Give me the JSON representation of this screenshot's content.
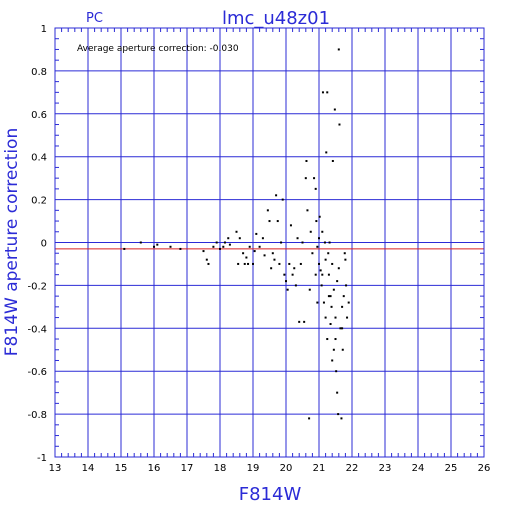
{
  "header": {
    "left_label": "PC",
    "title": "lmc_u48z01"
  },
  "annotation": "Average aperture correction: -0.030",
  "chart_data": {
    "type": "scatter",
    "title": "lmc_u48z01",
    "xlabel": "F814W",
    "ylabel": "F814W aperture correction",
    "xlim": [
      13,
      26
    ],
    "ylim": [
      -1,
      1
    ],
    "xticks": [
      13,
      14,
      15,
      16,
      17,
      18,
      19,
      20,
      21,
      22,
      23,
      24,
      25,
      26
    ],
    "yticks": [
      -1,
      -0.8,
      -0.6,
      -0.4,
      -0.2,
      0,
      0.2,
      0.4,
      0.6,
      0.8,
      1
    ],
    "ytick_labels": [
      "-1",
      "-0.8",
      "-0.6",
      "-0.4",
      "-0.2",
      "0",
      "0.2",
      "0.4",
      "0.6",
      "0.8",
      "1"
    ],
    "grid": true,
    "reference_lines": [
      {
        "y": 0,
        "color": "#2b2bd6"
      },
      {
        "y": -0.03,
        "color": "#d62020"
      }
    ],
    "points": [
      [
        15.1,
        -0.03
      ],
      [
        15.6,
        0.0
      ],
      [
        16.0,
        -0.02
      ],
      [
        16.1,
        -0.01
      ],
      [
        16.5,
        -0.02
      ],
      [
        16.8,
        -0.03
      ],
      [
        17.5,
        -0.04
      ],
      [
        17.6,
        -0.08
      ],
      [
        17.65,
        -0.1
      ],
      [
        17.8,
        -0.02
      ],
      [
        17.9,
        0.0
      ],
      [
        18.0,
        -0.03
      ],
      [
        18.1,
        -0.02
      ],
      [
        18.15,
        0.0
      ],
      [
        18.25,
        0.02
      ],
      [
        18.3,
        -0.01
      ],
      [
        18.5,
        0.05
      ],
      [
        18.6,
        0.02
      ],
      [
        18.55,
        -0.1
      ],
      [
        18.7,
        -0.05
      ],
      [
        18.75,
        -0.1
      ],
      [
        18.8,
        -0.07
      ],
      [
        18.85,
        -0.1
      ],
      [
        18.9,
        -0.02
      ],
      [
        19.0,
        -0.1
      ],
      [
        19.05,
        -0.04
      ],
      [
        19.1,
        0.04
      ],
      [
        19.2,
        -0.02
      ],
      [
        19.3,
        0.02
      ],
      [
        19.35,
        -0.06
      ],
      [
        19.45,
        0.15
      ],
      [
        19.5,
        0.1
      ],
      [
        19.55,
        -0.12
      ],
      [
        19.6,
        -0.05
      ],
      [
        19.65,
        -0.08
      ],
      [
        19.7,
        0.22
      ],
      [
        19.75,
        0.1
      ],
      [
        19.8,
        -0.1
      ],
      [
        19.85,
        0.0
      ],
      [
        19.9,
        0.2
      ],
      [
        19.95,
        -0.15
      ],
      [
        20.0,
        -0.18
      ],
      [
        20.05,
        -0.22
      ],
      [
        20.1,
        -0.1
      ],
      [
        20.15,
        0.08
      ],
      [
        20.2,
        -0.15
      ],
      [
        20.25,
        -0.12
      ],
      [
        20.3,
        -0.2
      ],
      [
        20.35,
        0.02
      ],
      [
        20.4,
        -0.37
      ],
      [
        20.45,
        -0.1
      ],
      [
        20.5,
        0.0
      ],
      [
        20.55,
        -0.37
      ],
      [
        20.6,
        0.3
      ],
      [
        20.62,
        0.38
      ],
      [
        20.65,
        0.15
      ],
      [
        20.7,
        -0.82
      ],
      [
        20.72,
        -0.22
      ],
      [
        20.75,
        0.05
      ],
      [
        20.8,
        -0.05
      ],
      [
        20.85,
        0.3
      ],
      [
        20.9,
        0.25
      ],
      [
        20.92,
        0.1
      ],
      [
        20.95,
        -0.02
      ],
      [
        21.0,
        -0.1
      ],
      [
        21.02,
        0.12
      ],
      [
        21.05,
        -0.13
      ],
      [
        21.08,
        -0.2
      ],
      [
        21.1,
        -0.15
      ],
      [
        21.12,
        0.7
      ],
      [
        21.15,
        -0.28
      ],
      [
        21.18,
        0.0
      ],
      [
        21.2,
        -0.35
      ],
      [
        21.22,
        0.42
      ],
      [
        21.25,
        0.7
      ],
      [
        21.28,
        -0.05
      ],
      [
        21.3,
        -0.25
      ],
      [
        21.32,
        0.0
      ],
      [
        21.35,
        -0.38
      ],
      [
        21.38,
        -0.3
      ],
      [
        21.4,
        -0.55
      ],
      [
        21.42,
        0.38
      ],
      [
        21.45,
        -0.5
      ],
      [
        21.48,
        0.62
      ],
      [
        21.5,
        -0.45
      ],
      [
        21.52,
        -0.6
      ],
      [
        21.55,
        -0.7
      ],
      [
        21.58,
        -0.8
      ],
      [
        21.6,
        0.9
      ],
      [
        21.62,
        0.55
      ],
      [
        21.65,
        -0.4
      ],
      [
        21.68,
        -0.82
      ],
      [
        21.7,
        -0.3
      ],
      [
        21.72,
        -0.5
      ],
      [
        21.75,
        -0.25
      ],
      [
        21.78,
        -0.05
      ],
      [
        21.8,
        -0.08
      ],
      [
        21.82,
        -0.2
      ],
      [
        21.85,
        -0.35
      ],
      [
        21.9,
        -0.28
      ],
      [
        21.6,
        -0.12
      ],
      [
        21.55,
        -0.18
      ],
      [
        21.45,
        -0.22
      ],
      [
        21.4,
        -0.1
      ],
      [
        21.3,
        -0.15
      ],
      [
        21.25,
        -0.45
      ],
      [
        21.2,
        -0.08
      ],
      [
        21.1,
        0.05
      ],
      [
        21.0,
        0.02
      ],
      [
        20.95,
        -0.28
      ],
      [
        20.9,
        -0.15
      ],
      [
        21.35,
        -0.25
      ],
      [
        21.5,
        -0.35
      ],
      [
        21.7,
        -0.4
      ]
    ]
  }
}
